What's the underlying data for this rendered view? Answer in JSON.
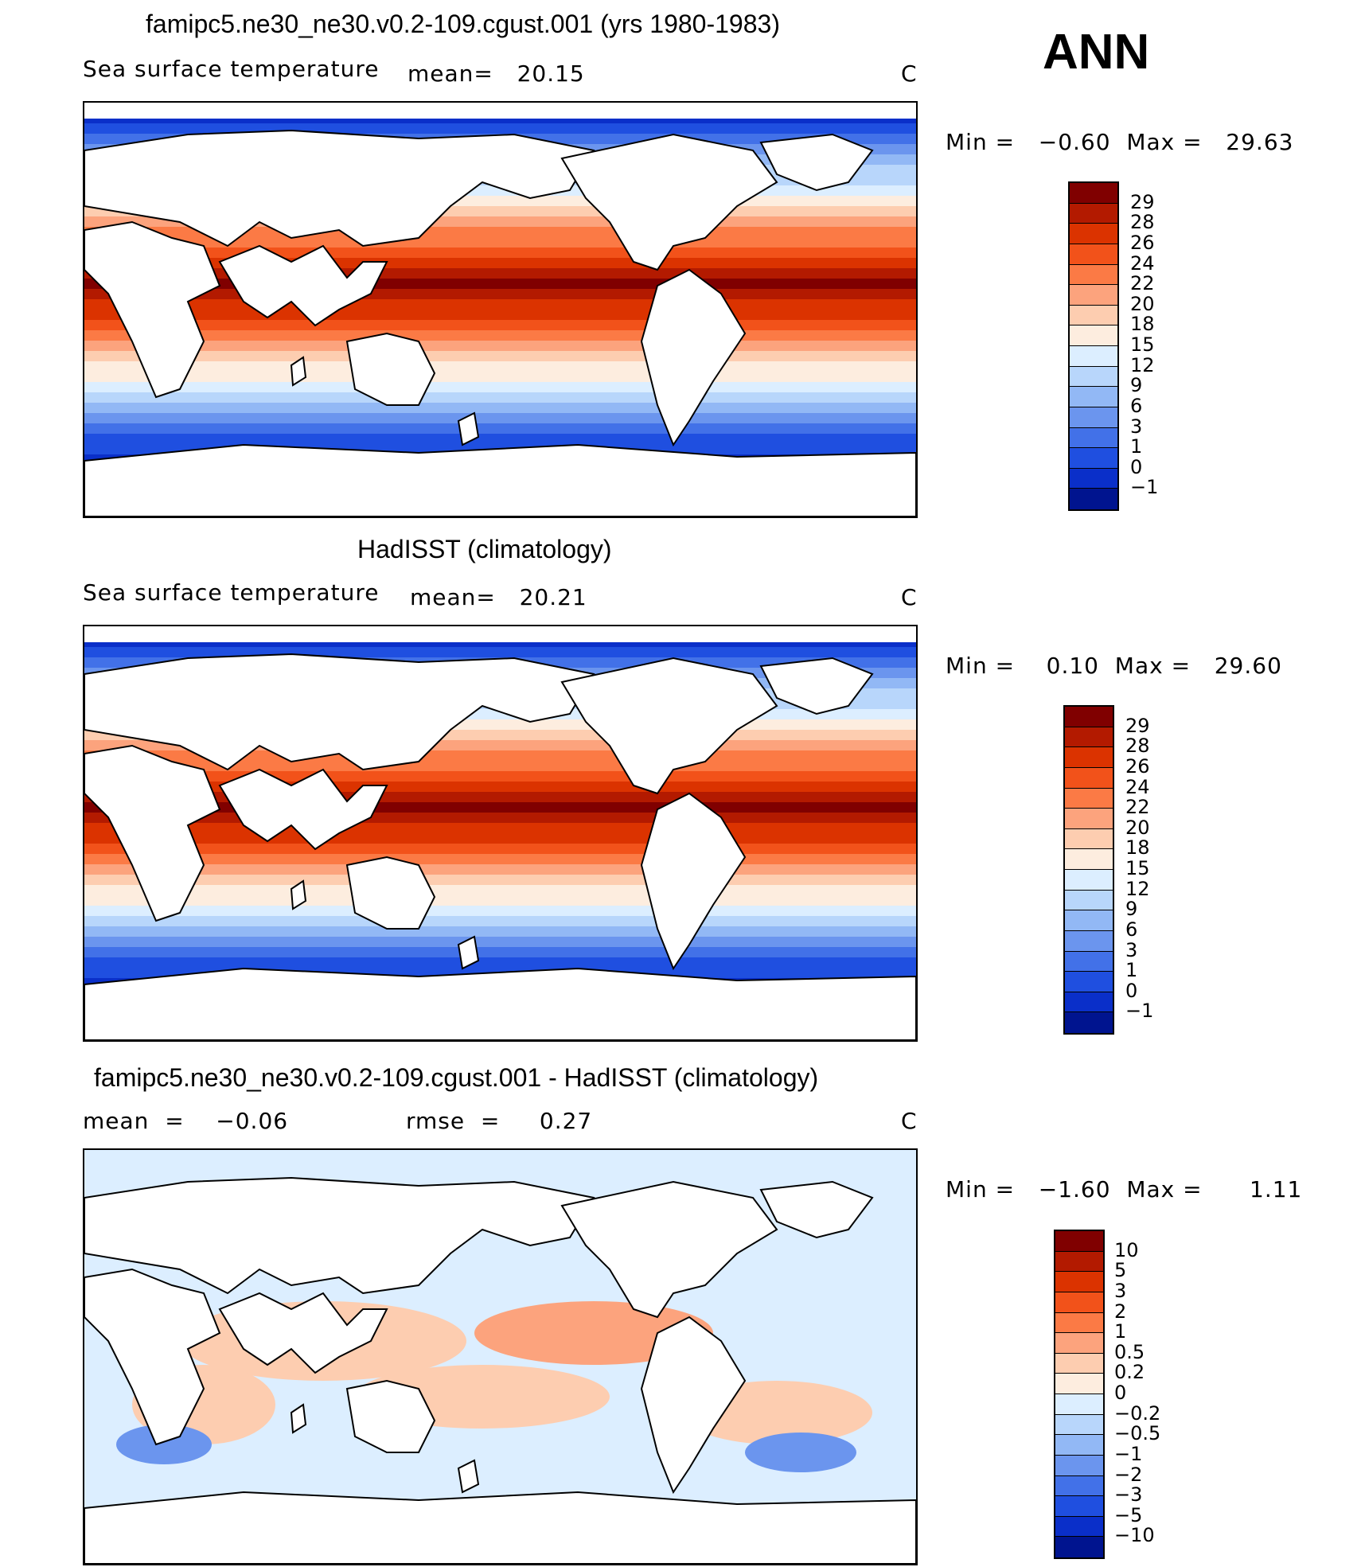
{
  "header": {
    "season": "ANN"
  },
  "chart_data": [
    {
      "type": "heatmap",
      "title": "famipc5.ne30_ne30.v0.2-109.cgust.001 (yrs 1980-1983)",
      "variable": "Sea surface temperature",
      "stat_text": "mean=   20.15",
      "mean": 20.15,
      "units": "C",
      "range_text": "Min =   −0.60  Max =   29.63",
      "min": -0.6,
      "max": 29.63,
      "colorbar": {
        "levels": [
          "29",
          "28",
          "26",
          "24",
          "22",
          "20",
          "18",
          "15",
          "12",
          "9",
          "6",
          "3",
          "1",
          "0",
          "−1"
        ],
        "colors": [
          "#800000",
          "#b31a00",
          "#db3300",
          "#f2521a",
          "#fb7a45",
          "#fca37d",
          "#fdcdb0",
          "#fdeddf",
          "#dceeff",
          "#b8d6fb",
          "#92b8f5",
          "#6b95ee",
          "#4271e8",
          "#1f4fe0",
          "#0a2fc9",
          "#00148f"
        ]
      }
    },
    {
      "type": "heatmap",
      "title": "HadISST (climatology)",
      "variable": "Sea surface temperature",
      "stat_text": "mean=   20.21",
      "mean": 20.21,
      "units": "C",
      "range_text": "Min =    0.10  Max =   29.60",
      "min": 0.1,
      "max": 29.6,
      "colorbar": {
        "levels": [
          "29",
          "28",
          "26",
          "24",
          "22",
          "20",
          "18",
          "15",
          "12",
          "9",
          "6",
          "3",
          "1",
          "0",
          "−1"
        ],
        "colors": [
          "#800000",
          "#b31a00",
          "#db3300",
          "#f2521a",
          "#fb7a45",
          "#fca37d",
          "#fdcdb0",
          "#fdeddf",
          "#dceeff",
          "#b8d6fb",
          "#92b8f5",
          "#6b95ee",
          "#4271e8",
          "#1f4fe0",
          "#0a2fc9",
          "#00148f"
        ]
      }
    },
    {
      "type": "heatmap",
      "title": "famipc5.ne30_ne30.v0.2-109.cgust.001 - HadISST (climatology)",
      "stat_text": "mean  =    −0.06",
      "mean": -0.06,
      "rmse_text": "rmse  =     0.27",
      "rmse": 0.27,
      "units": "C",
      "range_text": "Min =   −1.60  Max =      1.11",
      "min": -1.6,
      "max": 1.11,
      "colorbar": {
        "levels": [
          "10",
          "5",
          "3",
          "2",
          "1",
          "0.5",
          "0.2",
          "0",
          "−0.2",
          "−0.5",
          "−1",
          "−2",
          "−3",
          "−5",
          "−10"
        ],
        "colors": [
          "#800000",
          "#b31a00",
          "#db3300",
          "#f2521a",
          "#fb7a45",
          "#fca37d",
          "#fdcdb0",
          "#fdeddf",
          "#dceeff",
          "#b8d6fb",
          "#92b8f5",
          "#6b95ee",
          "#4271e8",
          "#1f4fe0",
          "#0a2fc9",
          "#00148f"
        ]
      }
    }
  ]
}
